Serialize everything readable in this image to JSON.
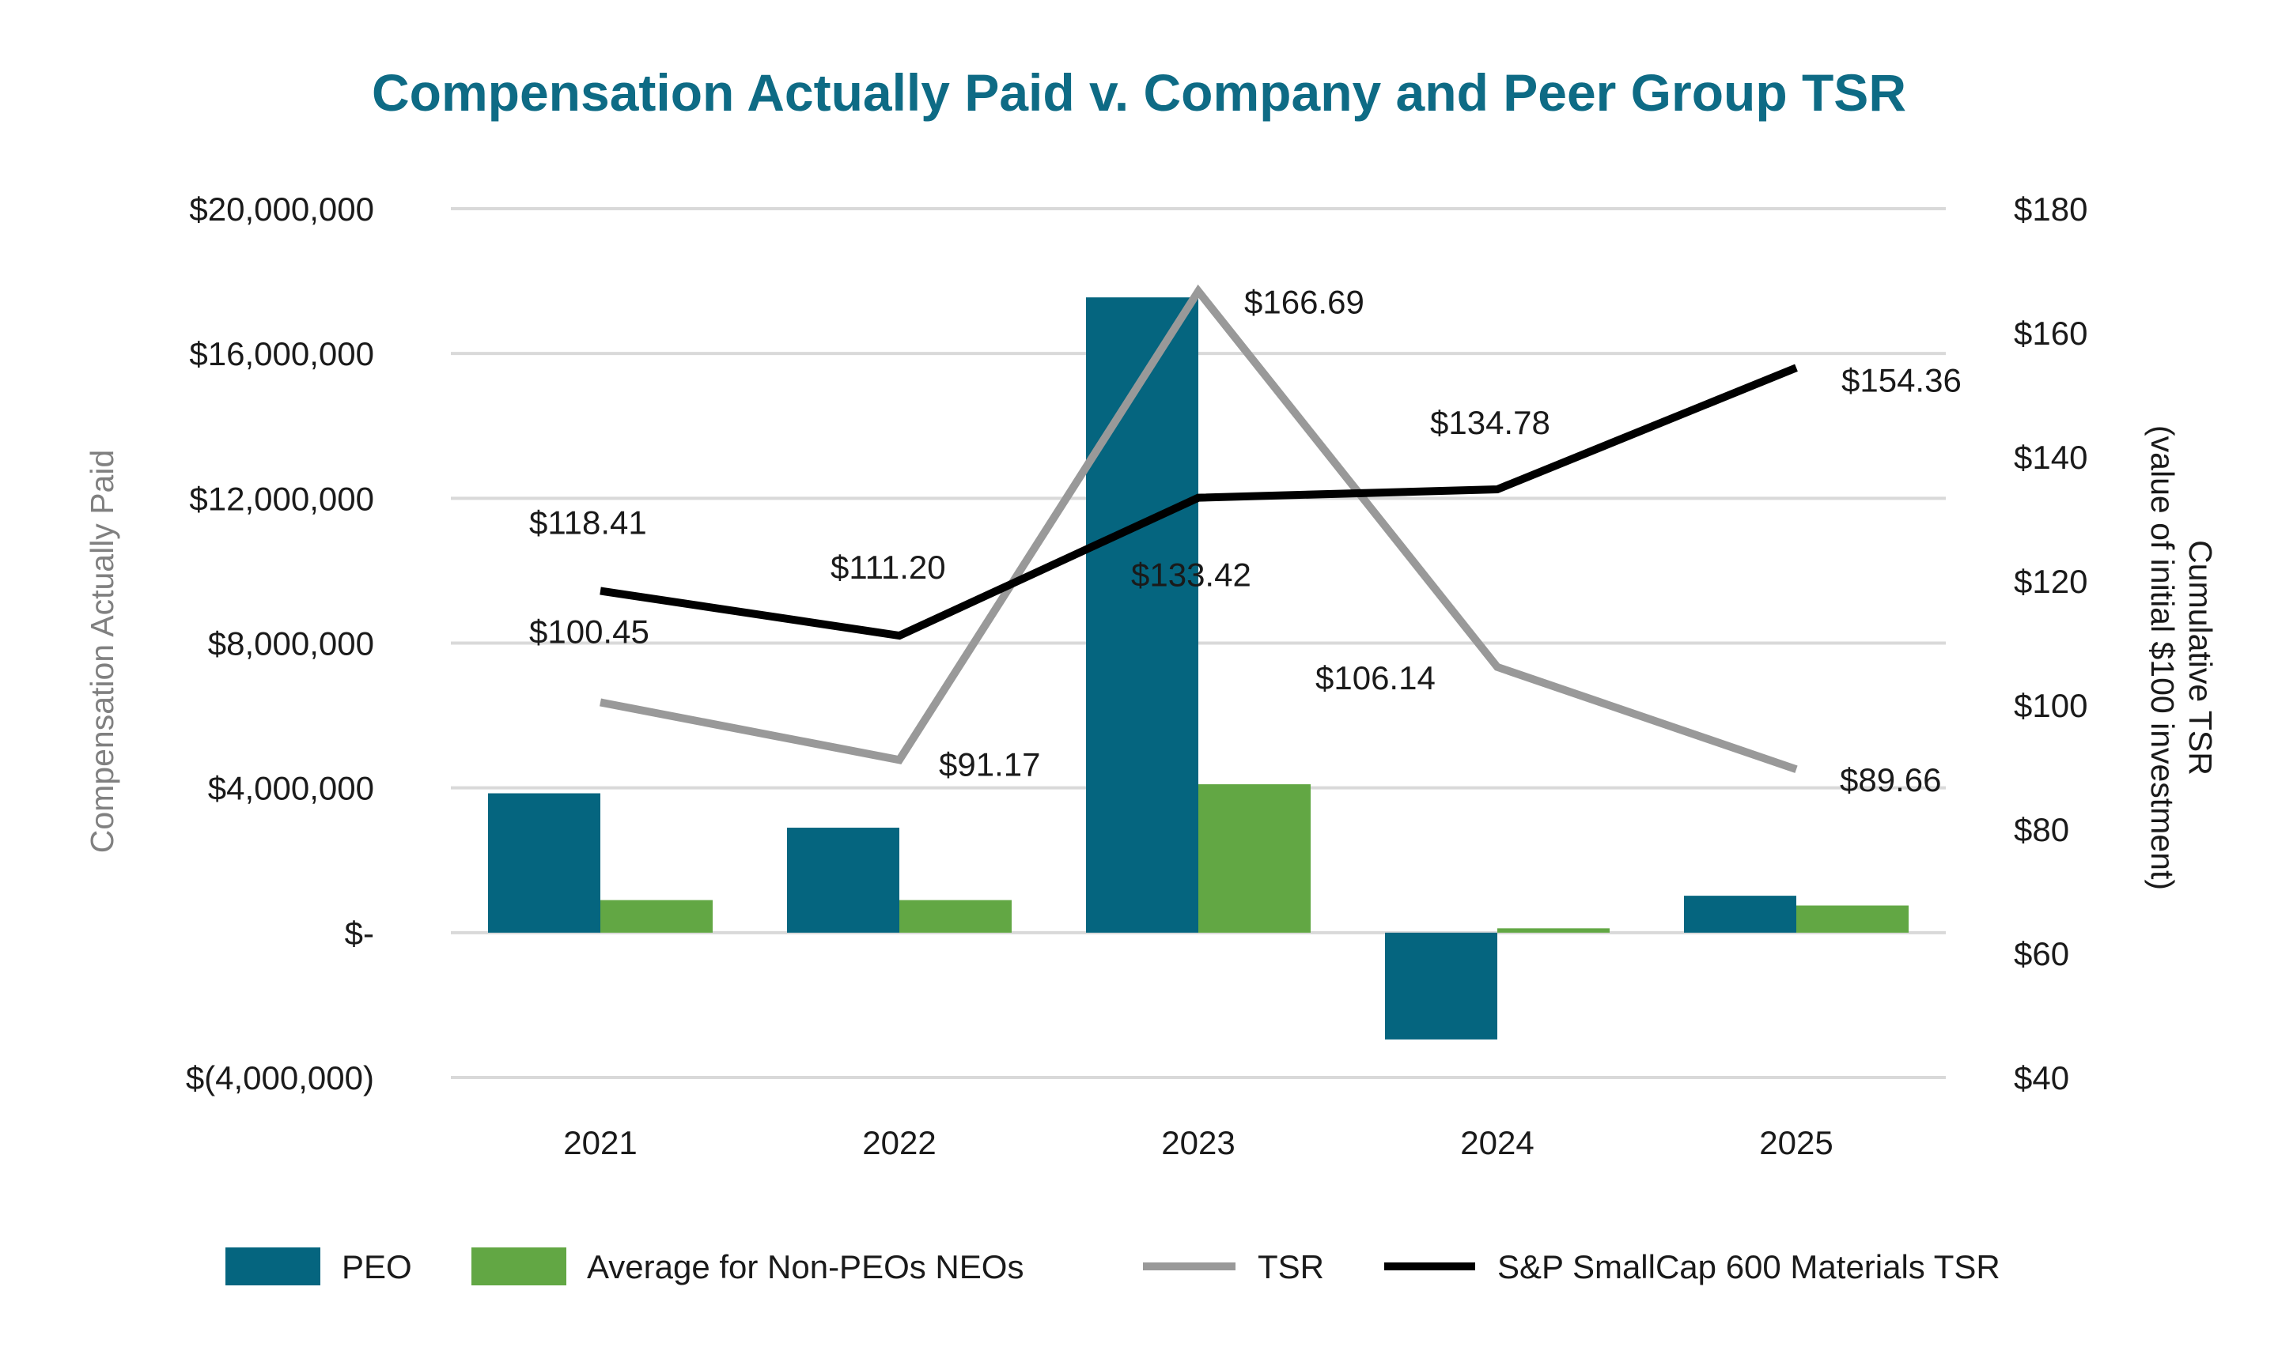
{
  "chart_data": {
    "type": "bar+line",
    "title": "Compensation Actually Paid v. Company and Peer Group TSR",
    "categories": [
      "2021",
      "2022",
      "2023",
      "2024",
      "2025"
    ],
    "y_left": {
      "label": "Compensation Actually Paid",
      "range": [
        -4000000,
        20000000
      ],
      "ticks": [
        {
          "value": 20000000,
          "label": "$20,000,000"
        },
        {
          "value": 16000000,
          "label": "$16,000,000"
        },
        {
          "value": 12000000,
          "label": "$12,000,000"
        },
        {
          "value": 8000000,
          "label": "$8,000,000"
        },
        {
          "value": 4000000,
          "label": "$4,000,000"
        },
        {
          "value": 0,
          "label": "$-"
        },
        {
          "value": -4000000,
          "label": "$(4,000,000)"
        }
      ]
    },
    "y_right": {
      "label_line1": "Cumulative  TSR",
      "label_line2": "(value of initial $100 investment)",
      "range": [
        40,
        180
      ],
      "ticks": [
        {
          "value": 180,
          "label": "$180"
        },
        {
          "value": 160,
          "label": "$160"
        },
        {
          "value": 140,
          "label": "$140"
        },
        {
          "value": 120,
          "label": "$120"
        },
        {
          "value": 100,
          "label": "$100"
        },
        {
          "value": 80,
          "label": "$80"
        },
        {
          "value": 60,
          "label": "$60"
        },
        {
          "value": 40,
          "label": "$40"
        }
      ]
    },
    "bar_series": [
      {
        "name": "PEO",
        "color": "#05657f",
        "values": [
          3850000,
          2900000,
          17550000,
          -2950000,
          1020000
        ]
      },
      {
        "name": "Average for Non-PEOs NEOs",
        "color": "#62a744",
        "values": [
          900000,
          900000,
          4100000,
          120000,
          750000
        ]
      }
    ],
    "line_series": [
      {
        "name": "TSR",
        "color": "#999999",
        "values": [
          100.45,
          91.17,
          166.69,
          106.14,
          89.66
        ],
        "labels": [
          "$100.45",
          "$91.17",
          "$166.69",
          "$106.14",
          "$89.66"
        ]
      },
      {
        "name": "S&P SmallCap 600 Materials TSR",
        "color": "#000000",
        "values": [
          118.41,
          111.2,
          133.42,
          134.78,
          154.36
        ],
        "labels": [
          "$118.41",
          "$111.20",
          "$133.42",
          "$134.78",
          "$154.36"
        ]
      }
    ],
    "legend": [
      "PEO",
      "Average for Non-PEOs NEOs",
      "TSR",
      "S&P SmallCap 600 Materials TSR"
    ],
    "legend_position": "bottom",
    "grid": true
  }
}
